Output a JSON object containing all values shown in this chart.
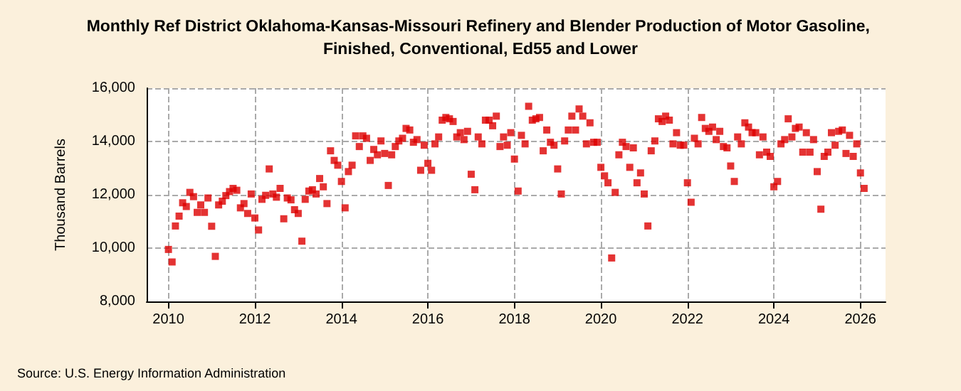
{
  "chart_data": {
    "type": "scatter",
    "title": "Monthly Ref District Oklahoma-Kansas-Missouri Refinery and Blender Production of Motor Gasoline, Finished, Conventional, Ed55 and Lower",
    "ylabel": "Thousand Barrels",
    "annotations": [
      "Source: U.S. Energy Information Administration"
    ],
    "x": [
      "2010-01",
      "2010-02",
      "2010-03",
      "2010-04",
      "2010-05",
      "2010-06",
      "2010-07",
      "2010-08",
      "2010-09",
      "2010-10",
      "2010-11",
      "2010-12",
      "2011-01",
      "2011-02",
      "2011-03",
      "2011-04",
      "2011-05",
      "2011-06",
      "2011-07",
      "2011-08",
      "2011-09",
      "2011-10",
      "2011-11",
      "2011-12",
      "2012-01",
      "2012-02",
      "2012-03",
      "2012-04",
      "2012-05",
      "2012-06",
      "2012-07",
      "2012-08",
      "2012-09",
      "2012-10",
      "2012-11",
      "2012-12",
      "2013-01",
      "2013-02",
      "2013-03",
      "2013-04",
      "2013-05",
      "2013-06",
      "2013-07",
      "2013-08",
      "2013-09",
      "2013-10",
      "2013-11",
      "2013-12",
      "2014-01",
      "2014-02",
      "2014-03",
      "2014-04",
      "2014-05",
      "2014-06",
      "2014-07",
      "2014-08",
      "2014-09",
      "2014-10",
      "2014-11",
      "2014-12",
      "2015-01",
      "2015-02",
      "2015-03",
      "2015-04",
      "2015-05",
      "2015-06",
      "2015-07",
      "2015-08",
      "2015-09",
      "2015-10",
      "2015-11",
      "2015-12",
      "2016-01",
      "2016-02",
      "2016-03",
      "2016-04",
      "2016-05",
      "2016-06",
      "2016-07",
      "2016-08",
      "2016-09",
      "2016-10",
      "2016-11",
      "2016-12",
      "2017-01",
      "2017-02",
      "2017-03",
      "2017-04",
      "2017-05",
      "2017-06",
      "2017-07",
      "2017-08",
      "2017-09",
      "2017-10",
      "2017-11",
      "2017-12",
      "2018-01",
      "2018-02",
      "2018-03",
      "2018-04",
      "2018-05",
      "2018-06",
      "2018-07",
      "2018-08",
      "2018-09",
      "2018-10",
      "2018-11",
      "2018-12",
      "2019-01",
      "2019-02",
      "2019-03",
      "2019-04",
      "2019-05",
      "2019-06",
      "2019-07",
      "2019-08",
      "2019-09",
      "2019-10",
      "2019-11",
      "2019-12",
      "2020-01",
      "2020-02",
      "2020-03",
      "2020-04",
      "2020-05",
      "2020-06",
      "2020-07",
      "2020-08",
      "2020-09",
      "2020-10",
      "2020-11",
      "2020-12",
      "2021-01",
      "2021-02",
      "2021-03",
      "2021-04",
      "2021-05",
      "2021-06",
      "2021-07",
      "2021-08",
      "2021-09",
      "2021-10",
      "2021-11",
      "2021-12",
      "2022-01",
      "2022-02",
      "2022-03",
      "2022-04",
      "2022-05",
      "2022-06",
      "2022-07",
      "2022-08",
      "2022-09",
      "2022-10",
      "2022-11",
      "2022-12",
      "2023-01",
      "2023-02",
      "2023-03",
      "2023-04",
      "2023-05",
      "2023-06",
      "2023-07",
      "2023-08",
      "2023-09",
      "2023-10",
      "2023-11",
      "2023-12",
      "2024-01",
      "2024-02",
      "2024-03",
      "2024-04",
      "2024-05",
      "2024-06",
      "2024-07",
      "2024-08",
      "2024-09",
      "2024-10",
      "2024-11",
      "2024-12",
      "2025-01",
      "2025-02",
      "2025-03",
      "2025-04",
      "2025-05",
      "2025-06",
      "2025-07",
      "2025-08",
      "2025-09",
      "2025-10",
      "2025-11",
      "2025-12",
      "2026-01",
      "2026-02"
    ],
    "series": [
      {
        "color": "#dd0000",
        "values": [
          9950,
          9480,
          10830,
          11200,
          11700,
          11560,
          12090,
          11930,
          11340,
          11620,
          11340,
          11880,
          10820,
          9690,
          11620,
          11760,
          11970,
          12120,
          12240,
          12170,
          11510,
          11670,
          11300,
          12030,
          11130,
          10680,
          11830,
          11980,
          12970,
          12030,
          11910,
          12240,
          11100,
          11880,
          11810,
          11440,
          11300,
          10260,
          11830,
          12140,
          12190,
          12030,
          12610,
          12300,
          11670,
          13650,
          13290,
          13110,
          12500,
          11510,
          12870,
          13110,
          14210,
          13810,
          14210,
          14120,
          13290,
          13700,
          13500,
          14020,
          13550,
          12350,
          13500,
          13810,
          14020,
          14120,
          14490,
          14430,
          13970,
          14070,
          12920,
          13860,
          13180,
          12920,
          13910,
          14170,
          14800,
          14900,
          14850,
          14750,
          14170,
          14330,
          14070,
          14380,
          12770,
          12190,
          14170,
          13910,
          14800,
          14800,
          14590,
          14950,
          13810,
          14170,
          13860,
          14330,
          13340,
          12140,
          14230,
          13910,
          15320,
          14800,
          14850,
          14900,
          13650,
          14430,
          13970,
          13860,
          12970,
          12030,
          14020,
          14430,
          14950,
          14430,
          15220,
          14950,
          13910,
          14700,
          13970,
          13970,
          13030,
          12710,
          12450,
          9630,
          12090,
          13500,
          13970,
          13810,
          13030,
          13760,
          12450,
          12820,
          12030,
          10830,
          13650,
          14020,
          14850,
          14750,
          14950,
          14800,
          13910,
          14330,
          13860,
          13860,
          12450,
          11720,
          14120,
          13910,
          14900,
          14490,
          14380,
          14540,
          14070,
          14380,
          13810,
          13760,
          13080,
          12500,
          14170,
          13910,
          14700,
          14540,
          14330,
          14330,
          13500,
          14170,
          13600,
          13440,
          12300,
          12500,
          13910,
          14070,
          14850,
          14170,
          14490,
          14540,
          13600,
          14330,
          13600,
          14070,
          12870,
          11460,
          13440,
          13600,
          14330,
          13860,
          14380,
          14430,
          13550,
          14230,
          13440,
          13910,
          12820,
          12240
        ]
      }
    ],
    "xlim": [
      "2009-07",
      "2026-08"
    ],
    "xticks": [
      "2010",
      "2012",
      "2014",
      "2016",
      "2018",
      "2020",
      "2022",
      "2024",
      "2026"
    ],
    "ylim": [
      8000,
      16000
    ],
    "yticks": [
      {
        "value": 8000,
        "label": "8,000"
      },
      {
        "value": 10000,
        "label": "10,000"
      },
      {
        "value": 12000,
        "label": "12,000"
      },
      {
        "value": 14000,
        "label": "14,000"
      },
      {
        "value": 16000,
        "label": "16,000"
      }
    ],
    "grid": true,
    "marker": "square"
  }
}
